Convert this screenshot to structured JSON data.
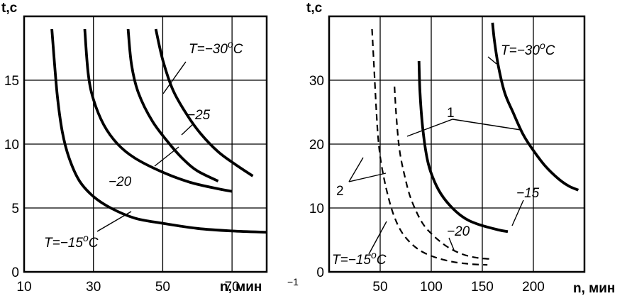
{
  "chart_data": [
    {
      "type": "line",
      "ylabel": "t,c",
      "xlabel": "n, мин",
      "xlabel_sup": "−1",
      "xlim": [
        10,
        80
      ],
      "ylim": [
        0,
        20
      ],
      "x_ticks": [
        "10",
        "30",
        "50",
        "70"
      ],
      "y_ticks": [
        "0",
        "5",
        "10",
        "15"
      ],
      "grid": true,
      "series": [
        {
          "name": "T=−15°C",
          "style": "solid",
          "points": [
            [
              18,
              19
            ],
            [
              19.5,
              14
            ],
            [
              21,
              11
            ],
            [
              23,
              8.9
            ],
            [
              26,
              7.1
            ],
            [
              30,
              5.9
            ],
            [
              35,
              5
            ],
            [
              42,
              4.2
            ],
            [
              50,
              3.8
            ],
            [
              60,
              3.4
            ],
            [
              70,
              3.2
            ],
            [
              80,
              3.1
            ]
          ]
        },
        {
          "name": "−20",
          "style": "solid",
          "points": [
            [
              27.5,
              19
            ],
            [
              28.5,
              15.5
            ],
            [
              30,
              13.5
            ],
            [
              33,
              11.5
            ],
            [
              37,
              10
            ],
            [
              42,
              8.9
            ],
            [
              50,
              7.8
            ],
            [
              58,
              7
            ],
            [
              66,
              6.5
            ],
            [
              70,
              6.3
            ]
          ]
        },
        {
          "name": "−25",
          "style": "solid",
          "points": [
            [
              40,
              19
            ],
            [
              41,
              16.2
            ],
            [
              43,
              14
            ],
            [
              47,
              11.8
            ],
            [
              52,
              10
            ],
            [
              56,
              8.8
            ],
            [
              60,
              7.9
            ],
            [
              66,
              7.1
            ]
          ]
        },
        {
          "name": "T=−30°C",
          "style": "solid",
          "points": [
            [
              48,
              19
            ],
            [
              50,
              16.6
            ],
            [
              53,
              14.2
            ],
            [
              57,
              12.3
            ],
            [
              61,
              10.8
            ],
            [
              66,
              9.4
            ],
            [
              71,
              8.4
            ],
            [
              76,
              7.5
            ]
          ]
        }
      ],
      "annotations": [
        {
          "text": "T=−30°C",
          "target": "T=−30°C"
        },
        {
          "text": "−25",
          "target": "−25"
        },
        {
          "text": "−20",
          "target": "−20"
        },
        {
          "text": "T=−15°C",
          "target": "T=−15°C"
        }
      ]
    },
    {
      "type": "line",
      "ylabel": "t,c",
      "xlabel": "n, мин",
      "xlim": [
        0,
        250
      ],
      "ylim": [
        0,
        40
      ],
      "x_ticks": [
        "50",
        "100",
        "150",
        "200"
      ],
      "y_ticks": [
        "0",
        "10",
        "20",
        "30"
      ],
      "grid": true,
      "series": [
        {
          "name": "T=−15°C (2)",
          "style": "dashed",
          "points": [
            [
              42,
              38
            ],
            [
              44,
              32
            ],
            [
              46,
              26
            ],
            [
              48,
              21
            ],
            [
              51,
              17
            ],
            [
              56,
              13
            ],
            [
              63,
              9
            ],
            [
              72,
              6
            ],
            [
              85,
              3.8
            ],
            [
              100,
              2.5
            ],
            [
              120,
              1.6
            ],
            [
              140,
              1.2
            ],
            [
              155,
              1.1
            ]
          ]
        },
        {
          "name": "−20 (2)",
          "style": "dashed",
          "points": [
            [
              64,
              29
            ],
            [
              66,
              24
            ],
            [
              69,
              19
            ],
            [
              74,
              15
            ],
            [
              80,
              11.5
            ],
            [
              90,
              8
            ],
            [
              100,
              6
            ],
            [
              115,
              4
            ],
            [
              130,
              2.8
            ],
            [
              145,
              2.2
            ],
            [
              160,
              2
            ]
          ]
        },
        {
          "name": "−15 (1)",
          "style": "solid",
          "points": [
            [
              88,
              33
            ],
            [
              89,
              28
            ],
            [
              92,
              22
            ],
            [
              97,
              17
            ],
            [
              105,
              13.5
            ],
            [
              115,
              11
            ],
            [
              130,
              8.7
            ],
            [
              145,
              7.5
            ],
            [
              165,
              6.6
            ],
            [
              175,
              6.3
            ]
          ]
        },
        {
          "name": "T=−30°C (1)",
          "style": "solid",
          "points": [
            [
              160,
              39
            ],
            [
              162,
              36
            ],
            [
              166,
              32
            ],
            [
              172,
              28
            ],
            [
              180,
              25
            ],
            [
              190,
              21.5
            ],
            [
              200,
              19
            ],
            [
              212,
              16.5
            ],
            [
              225,
              14.5
            ],
            [
              235,
              13.4
            ],
            [
              244,
              12.8
            ]
          ]
        }
      ],
      "annotations": [
        {
          "text": "T=−30°C",
          "target": "T=−30°C (1)"
        },
        {
          "text": "1",
          "target": "solid curves"
        },
        {
          "text": "2",
          "target": "dashed curves"
        },
        {
          "text": "−15",
          "target": "−15 (1)"
        },
        {
          "text": "−20",
          "target": "−20 (2)"
        },
        {
          "text": "T=−15°C",
          "target": "T=−15°C (2)"
        }
      ]
    }
  ]
}
